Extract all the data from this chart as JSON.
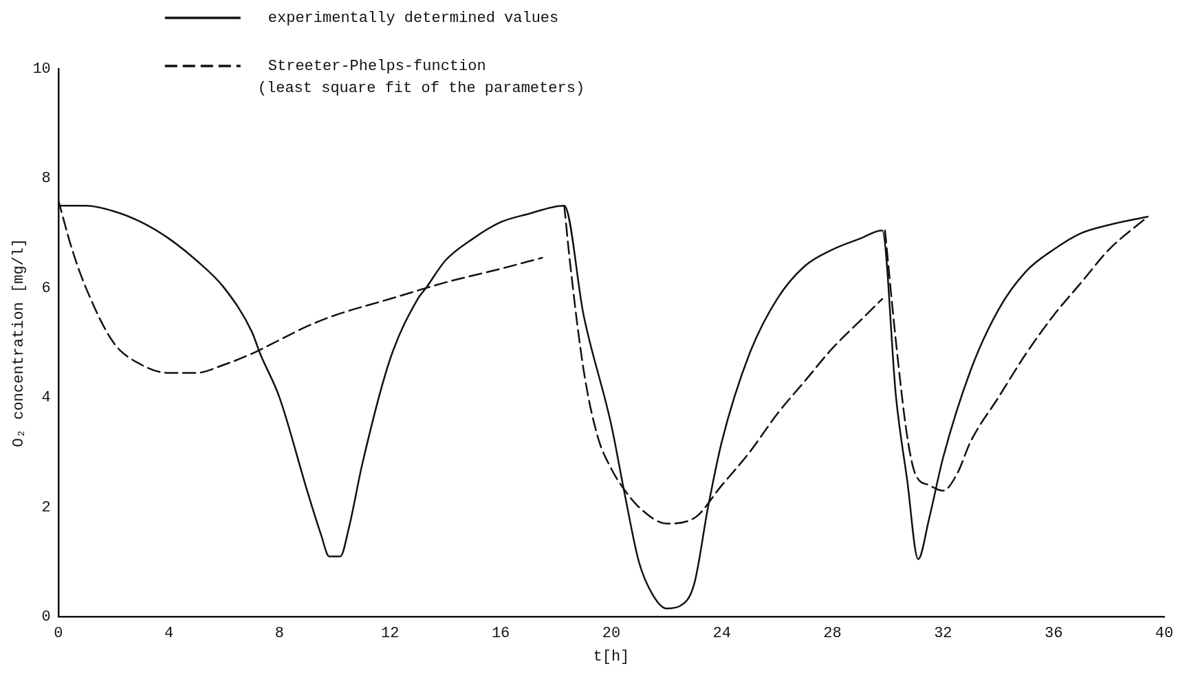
{
  "chart_data": {
    "type": "line",
    "xlabel": "t[h]",
    "ylabel": "O₂ concentration [mg/l]",
    "xlim": [
      0,
      40
    ],
    "xticks": [
      0,
      4,
      8,
      12,
      16,
      20,
      24,
      28,
      32,
      36,
      40
    ],
    "ylim": [
      0,
      10
    ],
    "yticks": [
      0,
      2,
      4,
      6,
      8,
      10
    ],
    "grid": false,
    "legend": "top left",
    "marker": "none",
    "series": [
      {
        "name": "experimentally determined values",
        "color": "#111111",
        "line_style": "solid",
        "x": [
          0,
          1,
          2,
          3,
          4,
          5,
          6,
          7,
          7.3,
          8,
          9,
          9.5,
          9.8,
          10.2,
          10.5,
          11,
          12,
          13,
          13.3,
          14,
          15,
          16,
          17,
          18.3,
          19,
          20,
          20.5,
          21,
          21.5,
          22,
          22.5,
          23,
          23.5,
          24,
          25,
          26,
          27,
          28,
          29,
          29.8,
          30.3,
          30.7,
          31.1,
          31.5,
          32,
          33,
          34,
          35,
          36,
          37,
          38,
          39.4
        ],
        "values": [
          7.5,
          7.5,
          7.4,
          7.2,
          6.9,
          6.5,
          6.0,
          5.2,
          4.8,
          4.0,
          2.3,
          1.5,
          1.1,
          1.1,
          1.6,
          2.8,
          4.7,
          5.8,
          6.0,
          6.5,
          6.9,
          7.2,
          7.35,
          7.5,
          5.5,
          3.5,
          2.2,
          1.0,
          0.4,
          0.15,
          0.2,
          0.6,
          2.0,
          3.2,
          4.8,
          5.8,
          6.4,
          6.7,
          6.9,
          7.05,
          4.0,
          2.5,
          1.05,
          1.8,
          2.9,
          4.5,
          5.6,
          6.3,
          6.7,
          7.0,
          7.15,
          7.3
        ]
      },
      {
        "name": "Streeter-Phelps-function\n(least square fit of the parameters)",
        "color": "#111111",
        "line_style": "dashed",
        "x": [
          0,
          0.5,
          1,
          2,
          3,
          4,
          5,
          6,
          7,
          8,
          9,
          10,
          12,
          14,
          16,
          17.5,
          17.9,
          18.3,
          18.5,
          19,
          19.5,
          20,
          20.5,
          21,
          22,
          23,
          24,
          25,
          26,
          27,
          28,
          29,
          29.8,
          29.85,
          29.9,
          30.3,
          30.7,
          31,
          31.5,
          32,
          32.5,
          33,
          34,
          35,
          36,
          37,
          38,
          39.4
        ],
        "values": [
          7.6,
          6.7,
          6.0,
          5.0,
          4.6,
          4.45,
          4.45,
          4.6,
          4.8,
          5.05,
          5.3,
          5.5,
          5.8,
          6.1,
          6.35,
          6.55,
          null,
          7.5,
          6.5,
          4.5,
          3.3,
          2.7,
          2.3,
          2.0,
          1.7,
          1.8,
          2.4,
          3.0,
          3.7,
          4.3,
          4.9,
          5.4,
          5.8,
          null,
          7.05,
          5.0,
          3.3,
          2.6,
          2.4,
          2.3,
          2.6,
          3.2,
          4.0,
          4.8,
          5.5,
          6.1,
          6.7,
          7.3
        ]
      }
    ]
  }
}
